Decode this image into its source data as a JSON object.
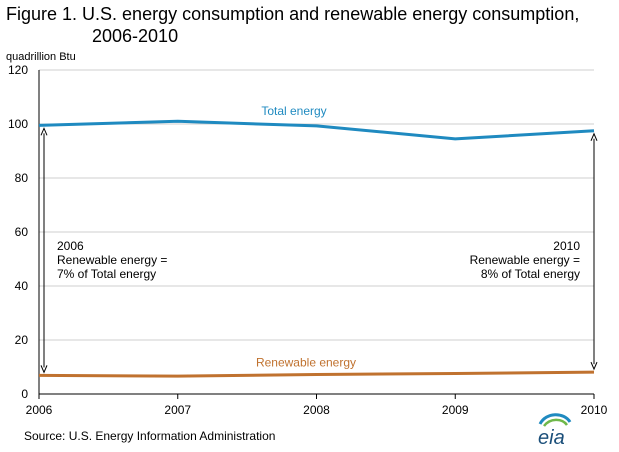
{
  "title_line1": "Figure 1.  U.S. energy consumption and renewable energy  consumption,",
  "title_line2": "2006-2010",
  "source": "Source:  U.S. Energy Information Administration",
  "logo_text": "eia",
  "colors": {
    "total": "#1f8ac0",
    "renewable": "#c0722f",
    "grid": "#cfcfcf",
    "axis": "#000000"
  },
  "annotations": {
    "left": [
      "2006",
      "Renewable energy =",
      "7% of Total energy"
    ],
    "right": [
      "2010",
      "Renewable energy =",
      "8% of Total energy"
    ]
  },
  "chart_data": {
    "type": "line",
    "title": "Figure 1.  U.S. energy consumption and renewable energy  consumption, 2006-2010",
    "ylabel": "quadrillion Btu",
    "xlabel": "",
    "x": [
      "2006",
      "2007",
      "2008",
      "2009",
      "2010"
    ],
    "yticks": [
      0,
      20,
      40,
      60,
      80,
      100,
      120
    ],
    "ylim": [
      0,
      120
    ],
    "grid": true,
    "legend": "none (series labeled inline)",
    "series": [
      {
        "name": "Total energy",
        "values": [
          99.5,
          101.0,
          99.3,
          94.5,
          97.5
        ]
      },
      {
        "name": "Renewable energy",
        "values": [
          6.9,
          6.6,
          7.2,
          7.6,
          8.1
        ]
      }
    ]
  }
}
